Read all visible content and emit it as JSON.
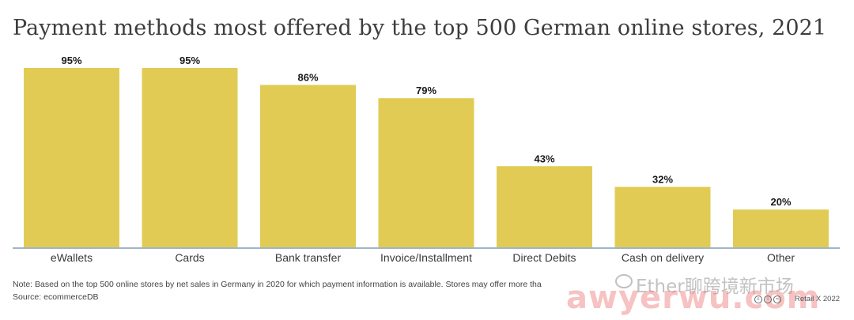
{
  "title": "Payment methods most offered by the top 500 German online stores, 2021",
  "note": "Note: Based on the top 500 online stores by net sales in Germany in 2020 for which payment information is available. Stores may offer more tha",
  "source": "Source: ecommerceDB",
  "watermark": {
    "latin": "Ether",
    "cn": "聊跨境新市场",
    "domain": "awyerwu.com"
  },
  "copyright": "Retail X 2022",
  "colors": {
    "bar": "#e2cb55",
    "axis": "#9fb6c6"
  },
  "chart_data": {
    "type": "bar",
    "title": "Payment methods most offered by the top 500 German online stores, 2021",
    "categories": [
      "eWallets",
      "Cards",
      "Bank transfer",
      "Invoice/Installment",
      "Direct Debits",
      "Cash on delivery",
      "Other"
    ],
    "values": [
      95,
      95,
      86,
      79,
      43,
      32,
      20
    ],
    "value_labels": [
      "95%",
      "95%",
      "86%",
      "79%",
      "43%",
      "32%",
      "20%"
    ],
    "unit": "%",
    "xlabel": "",
    "ylabel": "",
    "ylim": [
      0,
      100
    ],
    "grid": false,
    "legend": "none"
  }
}
